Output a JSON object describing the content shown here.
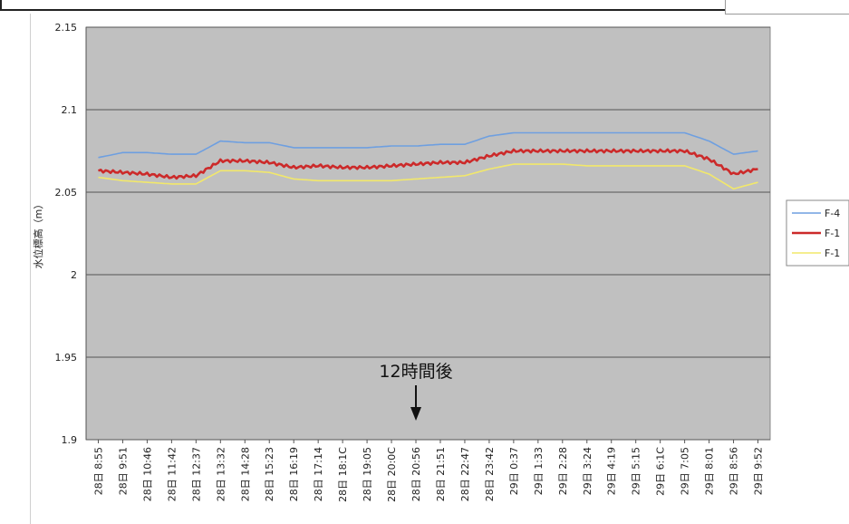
{
  "chart_data": {
    "type": "line",
    "ylabel": "水位標高（m）",
    "ylim": [
      1.9,
      2.15
    ],
    "yticks": [
      1.9,
      1.95,
      2,
      2.05,
      2.1,
      2.15
    ],
    "ytick_labels": [
      "1.9",
      "1.95",
      "2",
      "2.05",
      "2.1",
      "2.15"
    ],
    "grid": "horizontal",
    "legend_position": "right",
    "categories": [
      "28日 8:55",
      "28日 9:51",
      "28日 10:46",
      "28日 11:42",
      "28日 12:37",
      "28日 13:32",
      "28日 14:28",
      "28日 15:23",
      "28日 16:19",
      "28日 17:14",
      "28日 18:10",
      "28日 19:05",
      "28日 20:00",
      "28日 20:56",
      "28日 21:51",
      "28日 22:47",
      "28日 23:42",
      "29日 0:37",
      "29日 1:33",
      "29日 2:28",
      "29日 3:24",
      "29日 4:19",
      "29日 5:15",
      "29日 6:10",
      "29日 7:05",
      "29日 8:01",
      "29日 8:56",
      "29日 9:52"
    ],
    "category_labels": [
      "28日 8:55",
      "28日 9:51",
      "28日 10:46",
      "28日 11:42",
      "28日 12:37",
      "28日 13:32",
      "28日 14:28",
      "28日 15:23",
      "28日 16:19",
      "28日 17:14",
      "28日 18:1C",
      "28日 19:05",
      "28日 20:0C",
      "28日 20:56",
      "28日 21:51",
      "28日 22:47",
      "28日 23:42",
      "29日 0:37",
      "29日 1:33",
      "29日 2:28",
      "29日 3:24",
      "29日 4:19",
      "29日 5:15",
      "29日 6:1C",
      "29日 7:05",
      "29日 8:01",
      "29日 8:56",
      "29日 9:52"
    ],
    "series": [
      {
        "name": "F-4",
        "color": "#6e9fe0",
        "values": [
          2.071,
          2.074,
          2.074,
          2.073,
          2.073,
          2.081,
          2.08,
          2.08,
          2.077,
          2.077,
          2.077,
          2.077,
          2.078,
          2.078,
          2.079,
          2.079,
          2.084,
          2.086,
          2.086,
          2.086,
          2.086,
          2.086,
          2.086,
          2.086,
          2.086,
          2.081,
          2.073,
          2.075
        ]
      },
      {
        "name": "F-1",
        "color": "#cc2a2a",
        "values": [
          2.063,
          2.062,
          2.061,
          2.059,
          2.06,
          2.069,
          2.069,
          2.068,
          2.065,
          2.066,
          2.065,
          2.065,
          2.066,
          2.067,
          2.068,
          2.068,
          2.072,
          2.075,
          2.075,
          2.075,
          2.075,
          2.075,
          2.075,
          2.075,
          2.075,
          2.07,
          2.061,
          2.064
        ]
      },
      {
        "name": "F-1",
        "color": "#f2e86a",
        "values": [
          2.059,
          2.057,
          2.056,
          2.055,
          2.055,
          2.063,
          2.063,
          2.062,
          2.058,
          2.057,
          2.057,
          2.057,
          2.057,
          2.058,
          2.059,
          2.06,
          2.064,
          2.067,
          2.067,
          2.067,
          2.066,
          2.066,
          2.066,
          2.066,
          2.066,
          2.061,
          2.052,
          2.056
        ]
      }
    ],
    "annotation": {
      "text": "12時間後",
      "at_category": "28日 20:56"
    }
  },
  "legend": [
    {
      "label": "F-4",
      "color": "#6e9fe0"
    },
    {
      "label": "F-1",
      "color": "#cc2a2a"
    },
    {
      "label": "F-1",
      "color": "#f2e86a"
    }
  ],
  "plot_background": "#c0c0c0"
}
